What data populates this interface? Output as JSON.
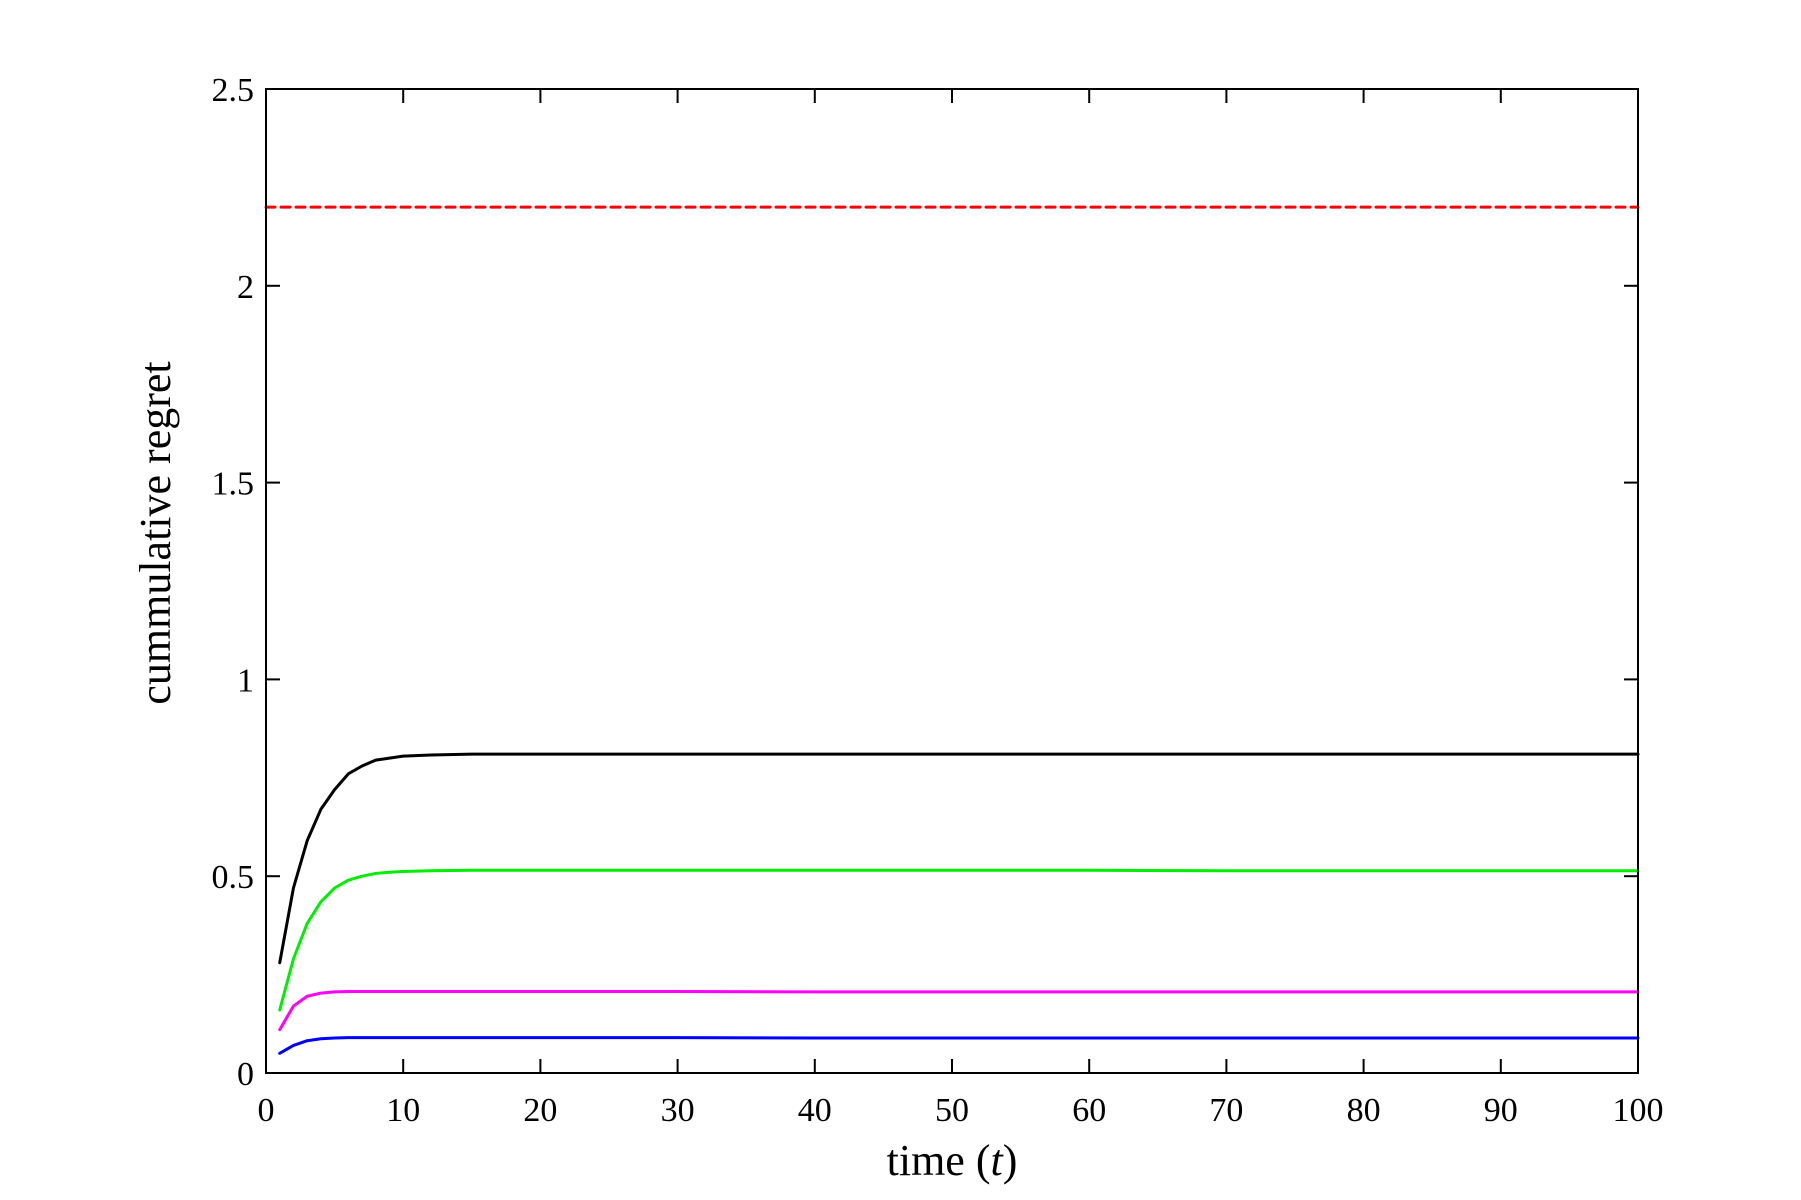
{
  "chart_data": {
    "type": "line",
    "title": "",
    "xlabel": "time (",
    "xlabel_var": "t",
    "xlabel_close": ")",
    "ylabel": "cummulative regret",
    "xlim": [
      0,
      100
    ],
    "ylim": [
      0,
      2.5
    ],
    "xticks": [
      0,
      10,
      20,
      30,
      40,
      50,
      60,
      70,
      80,
      90,
      100
    ],
    "yticks": [
      0,
      0.5,
      1,
      1.5,
      2,
      2.5
    ],
    "xtick_labels": [
      "0",
      "10",
      "20",
      "30",
      "40",
      "50",
      "60",
      "70",
      "80",
      "90",
      "100"
    ],
    "ytick_labels": [
      "0",
      "0.5",
      "1",
      "1.5",
      "2",
      "2.5"
    ],
    "grid": false,
    "legend": "none",
    "series": [
      {
        "color": "#ff0000",
        "style": "dashed",
        "x": [
          0,
          100
        ],
        "y": [
          2.2,
          2.2
        ]
      },
      {
        "color": "#000000",
        "style": "solid",
        "x": [
          1,
          2,
          3,
          4,
          5,
          6,
          7,
          8,
          9,
          10,
          12,
          15,
          20,
          30,
          40,
          50,
          60,
          70,
          80,
          90,
          100
        ],
        "y": [
          0.28,
          0.47,
          0.59,
          0.67,
          0.72,
          0.76,
          0.78,
          0.795,
          0.8,
          0.805,
          0.808,
          0.81,
          0.81,
          0.81,
          0.81,
          0.81,
          0.81,
          0.81,
          0.81,
          0.81,
          0.81
        ]
      },
      {
        "color": "#00ee00",
        "style": "solid",
        "x": [
          1,
          2,
          3,
          4,
          5,
          6,
          7,
          8,
          9,
          10,
          12,
          15,
          20,
          30,
          40,
          50,
          60,
          70,
          80,
          90,
          100
        ],
        "y": [
          0.16,
          0.29,
          0.38,
          0.435,
          0.47,
          0.49,
          0.5,
          0.507,
          0.51,
          0.512,
          0.514,
          0.515,
          0.515,
          0.515,
          0.515,
          0.515,
          0.515,
          0.514,
          0.514,
          0.514,
          0.514
        ]
      },
      {
        "color": "#ff00ff",
        "style": "solid",
        "x": [
          1,
          2,
          3,
          4,
          5,
          6,
          8,
          10,
          15,
          20,
          30,
          40,
          50,
          60,
          70,
          80,
          90,
          100
        ],
        "y": [
          0.11,
          0.17,
          0.195,
          0.203,
          0.206,
          0.207,
          0.207,
          0.207,
          0.207,
          0.207,
          0.207,
          0.206,
          0.206,
          0.206,
          0.206,
          0.206,
          0.206,
          0.206
        ]
      },
      {
        "color": "#0000ff",
        "style": "solid",
        "x": [
          1,
          2,
          3,
          4,
          5,
          6,
          8,
          10,
          15,
          20,
          30,
          40,
          50,
          60,
          70,
          80,
          90,
          100
        ],
        "y": [
          0.05,
          0.07,
          0.082,
          0.087,
          0.089,
          0.09,
          0.09,
          0.09,
          0.09,
          0.09,
          0.09,
          0.089,
          0.089,
          0.089,
          0.089,
          0.089,
          0.089,
          0.089
        ]
      }
    ]
  }
}
